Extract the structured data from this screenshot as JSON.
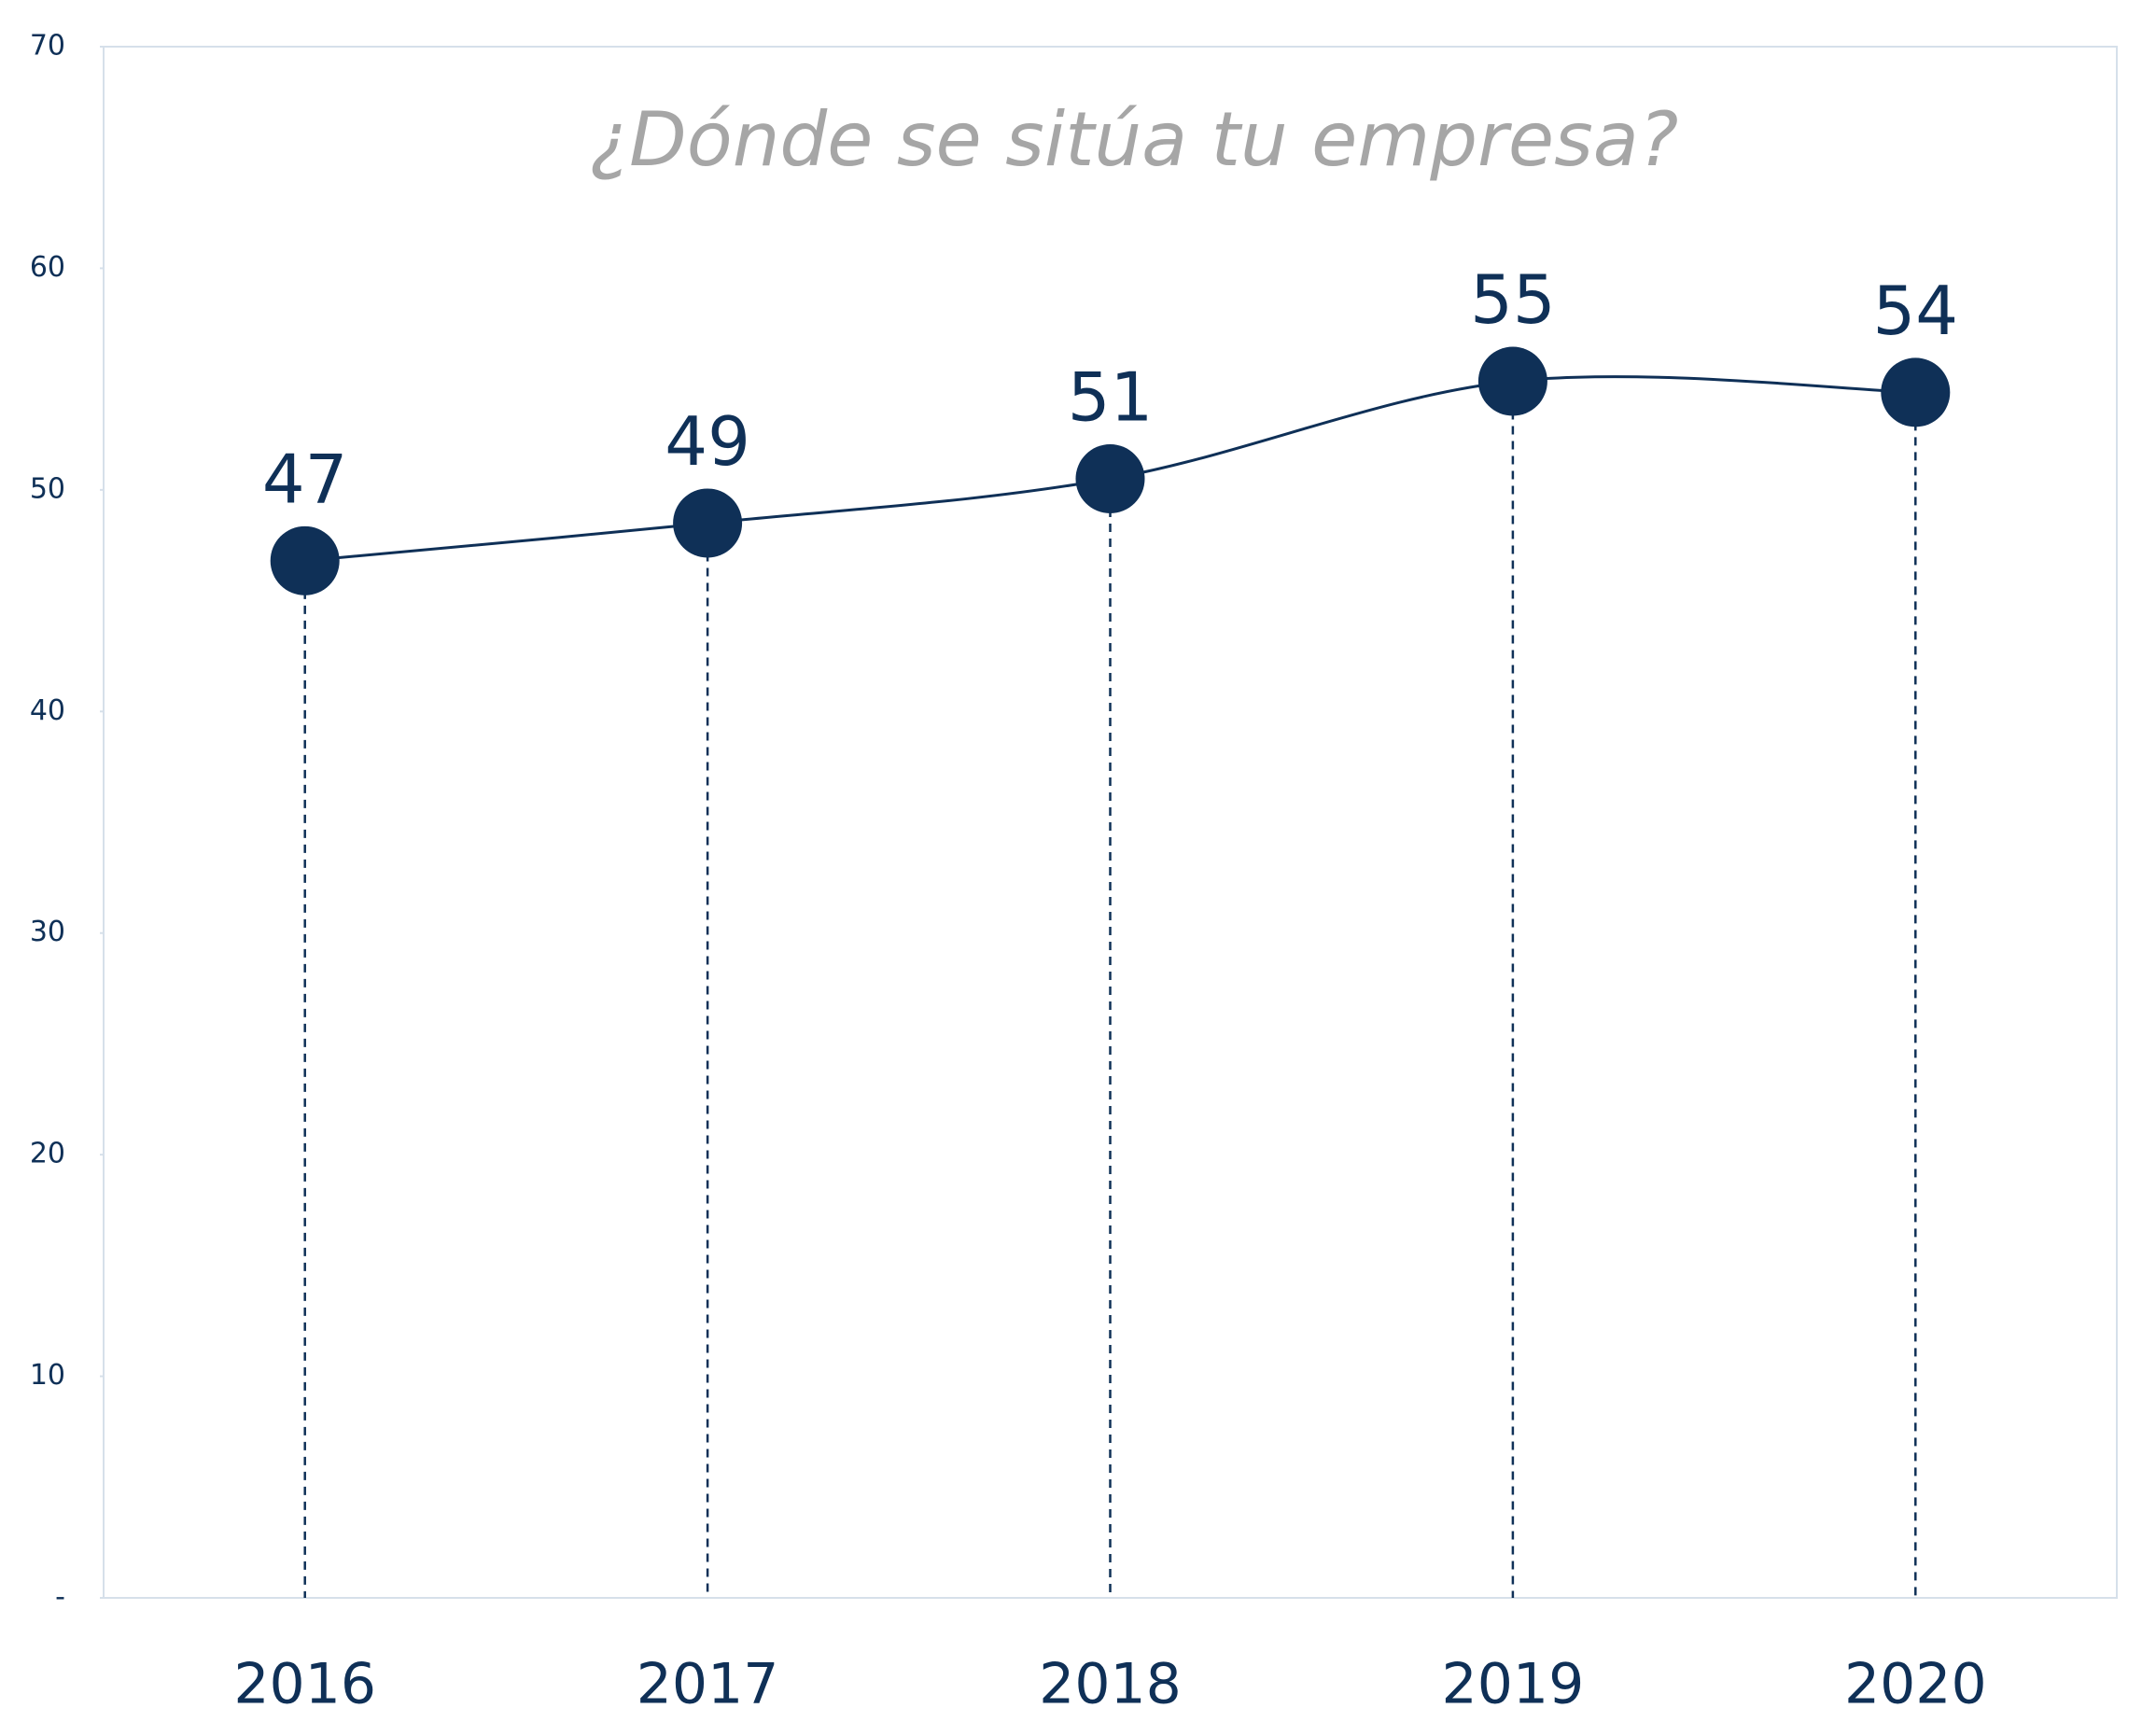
{
  "chart_data": {
    "type": "line",
    "title": "¿Dónde se sitúa tu empresa?",
    "categories": [
      "2016",
      "2017",
      "2018",
      "2019",
      "2020"
    ],
    "values": [
      46.8,
      48.5,
      50.5,
      54.9,
      54.4
    ],
    "value_labels": [
      "47",
      "49",
      "51",
      "55",
      "54"
    ],
    "color": "#0f3057",
    "ylim": [
      0,
      70
    ],
    "yticks": [
      {
        "value": 0,
        "label": "-"
      },
      10,
      20,
      30,
      40,
      50,
      60,
      70
    ],
    "grid": false
  }
}
